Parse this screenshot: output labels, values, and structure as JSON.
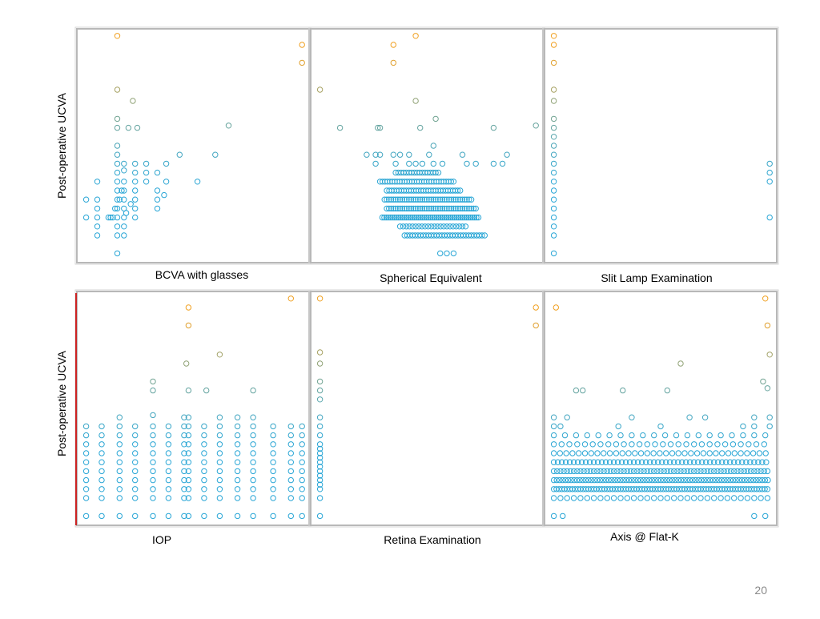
{
  "page_number": "20",
  "colors": {
    "low": "#29a6d6",
    "high": "#f0a020",
    "frame": "#b8b8b8",
    "accent_line": "#cc2222"
  },
  "chart_data": [
    {
      "type": "scatter",
      "xlabel": "BCVA with glasses",
      "ylabel": "Post-operative UCVA",
      "xlim": [
        0,
        1
      ],
      "ylim": [
        0,
        1
      ],
      "points": [
        [
          0.16,
          0.99
        ],
        [
          0.99,
          0.95
        ],
        [
          0.99,
          0.87
        ],
        [
          0.16,
          0.75
        ],
        [
          0.23,
          0.7
        ],
        [
          0.16,
          0.62
        ],
        [
          0.16,
          0.58
        ],
        [
          0.21,
          0.58
        ],
        [
          0.25,
          0.58
        ],
        [
          0.66,
          0.59
        ],
        [
          0.44,
          0.46
        ],
        [
          0.6,
          0.46
        ],
        [
          0.16,
          0.5
        ],
        [
          0.16,
          0.46
        ],
        [
          0.16,
          0.42
        ],
        [
          0.19,
          0.42
        ],
        [
          0.24,
          0.42
        ],
        [
          0.29,
          0.42
        ],
        [
          0.38,
          0.42
        ],
        [
          0.16,
          0.38
        ],
        [
          0.19,
          0.39
        ],
        [
          0.24,
          0.38
        ],
        [
          0.29,
          0.38
        ],
        [
          0.34,
          0.38
        ],
        [
          0.16,
          0.34
        ],
        [
          0.19,
          0.34
        ],
        [
          0.24,
          0.34
        ],
        [
          0.29,
          0.34
        ],
        [
          0.38,
          0.34
        ],
        [
          0.52,
          0.34
        ],
        [
          0.07,
          0.34
        ],
        [
          0.16,
          0.3
        ],
        [
          0.19,
          0.3
        ],
        [
          0.24,
          0.3
        ],
        [
          0.34,
          0.3
        ],
        [
          0.37,
          0.28
        ],
        [
          0.02,
          0.26
        ],
        [
          0.07,
          0.26
        ],
        [
          0.16,
          0.26
        ],
        [
          0.19,
          0.26
        ],
        [
          0.24,
          0.26
        ],
        [
          0.34,
          0.26
        ],
        [
          0.07,
          0.22
        ],
        [
          0.16,
          0.22
        ],
        [
          0.19,
          0.22
        ],
        [
          0.24,
          0.22
        ],
        [
          0.34,
          0.22
        ],
        [
          0.07,
          0.18
        ],
        [
          0.13,
          0.18
        ],
        [
          0.16,
          0.18
        ],
        [
          0.19,
          0.18
        ],
        [
          0.24,
          0.18
        ],
        [
          0.02,
          0.18
        ],
        [
          0.07,
          0.14
        ],
        [
          0.16,
          0.14
        ],
        [
          0.19,
          0.14
        ],
        [
          0.07,
          0.1
        ],
        [
          0.16,
          0.1
        ],
        [
          0.19,
          0.1
        ],
        [
          0.16,
          0.02
        ],
        [
          0.15,
          0.22
        ],
        [
          0.17,
          0.26
        ],
        [
          0.18,
          0.3
        ],
        [
          0.2,
          0.2
        ],
        [
          0.22,
          0.24
        ],
        [
          0.14,
          0.18
        ],
        [
          0.12,
          0.18
        ]
      ]
    },
    {
      "type": "scatter",
      "xlabel": "Spherical Equivalent",
      "ylabel": "",
      "xlim": [
        0,
        1
      ],
      "ylim": [
        0,
        1
      ],
      "points": [
        [
          0.45,
          0.99
        ],
        [
          0.35,
          0.95
        ],
        [
          0.35,
          0.87
        ],
        [
          0.02,
          0.75
        ],
        [
          0.45,
          0.7
        ],
        [
          0.54,
          0.62
        ],
        [
          0.11,
          0.58
        ],
        [
          0.28,
          0.58
        ],
        [
          0.29,
          0.58
        ],
        [
          0.47,
          0.58
        ],
        [
          0.8,
          0.58
        ],
        [
          0.99,
          0.59
        ],
        [
          0.53,
          0.5
        ],
        [
          0.23,
          0.46
        ],
        [
          0.27,
          0.46
        ],
        [
          0.29,
          0.46
        ],
        [
          0.35,
          0.46
        ],
        [
          0.38,
          0.46
        ],
        [
          0.42,
          0.46
        ],
        [
          0.51,
          0.46
        ],
        [
          0.66,
          0.46
        ],
        [
          0.86,
          0.46
        ],
        [
          0.27,
          0.42
        ],
        [
          0.36,
          0.42
        ],
        [
          0.42,
          0.42
        ],
        [
          0.45,
          0.42
        ],
        [
          0.48,
          0.42
        ],
        [
          0.53,
          0.42
        ],
        [
          0.57,
          0.42
        ],
        [
          0.68,
          0.42
        ],
        [
          0.72,
          0.42
        ],
        [
          0.8,
          0.42
        ],
        [
          0.84,
          0.42
        ]
      ],
      "clusters": [
        {
          "y": 0.38,
          "x0": 0.36,
          "x1": 0.56,
          "step": 0.012
        },
        {
          "y": 0.34,
          "x0": 0.29,
          "x1": 0.62,
          "step": 0.011
        },
        {
          "y": 0.3,
          "x0": 0.32,
          "x1": 0.66,
          "step": 0.011
        },
        {
          "y": 0.26,
          "x0": 0.31,
          "x1": 0.7,
          "step": 0.01
        },
        {
          "y": 0.22,
          "x0": 0.32,
          "x1": 0.72,
          "step": 0.01
        },
        {
          "y": 0.18,
          "x0": 0.3,
          "x1": 0.74,
          "step": 0.009
        },
        {
          "y": 0.14,
          "x0": 0.38,
          "x1": 0.68,
          "step": 0.014
        },
        {
          "y": 0.1,
          "x0": 0.4,
          "x1": 0.76,
          "step": 0.012
        },
        {
          "y": 0.02,
          "x0": 0.56,
          "x1": 0.62,
          "step": 0.03
        }
      ]
    },
    {
      "type": "scatter",
      "xlabel": "Slit Lamp Examination",
      "ylabel": "",
      "xlim": [
        0,
        1
      ],
      "ylim": [
        0,
        1
      ],
      "points": [
        [
          0.02,
          0.99
        ],
        [
          0.02,
          0.95
        ],
        [
          0.02,
          0.87
        ],
        [
          0.02,
          0.75
        ],
        [
          0.02,
          0.7
        ],
        [
          0.02,
          0.62
        ],
        [
          0.02,
          0.58
        ],
        [
          0.02,
          0.54
        ],
        [
          0.02,
          0.5
        ],
        [
          0.02,
          0.46
        ],
        [
          0.02,
          0.42
        ],
        [
          0.02,
          0.38
        ],
        [
          0.02,
          0.34
        ],
        [
          0.02,
          0.3
        ],
        [
          0.02,
          0.26
        ],
        [
          0.02,
          0.22
        ],
        [
          0.02,
          0.18
        ],
        [
          0.02,
          0.14
        ],
        [
          0.02,
          0.1
        ],
        [
          0.02,
          0.02
        ],
        [
          0.99,
          0.42
        ],
        [
          0.99,
          0.38
        ],
        [
          0.99,
          0.34
        ],
        [
          0.99,
          0.18
        ]
      ]
    },
    {
      "type": "scatter",
      "xlabel": "IOP",
      "ylabel": "Post-operative UCVA",
      "xlim": [
        0,
        1
      ],
      "ylim": [
        0,
        1
      ],
      "points": [
        [
          0.94,
          0.99
        ],
        [
          0.48,
          0.95
        ],
        [
          0.48,
          0.87
        ],
        [
          0.62,
          0.74
        ],
        [
          0.47,
          0.7
        ],
        [
          0.32,
          0.62
        ],
        [
          0.32,
          0.58
        ],
        [
          0.48,
          0.58
        ],
        [
          0.56,
          0.58
        ],
        [
          0.77,
          0.58
        ],
        [
          0.17,
          0.46
        ],
        [
          0.32,
          0.47
        ],
        [
          0.46,
          0.46
        ],
        [
          0.48,
          0.46
        ],
        [
          0.62,
          0.46
        ],
        [
          0.7,
          0.46
        ],
        [
          0.77,
          0.46
        ]
      ],
      "grid_points": {
        "cols": [
          0.02,
          0.09,
          0.17,
          0.24,
          0.32,
          0.39,
          0.46,
          0.48,
          0.55,
          0.62,
          0.7,
          0.77,
          0.86,
          0.94,
          0.99
        ],
        "rows": [
          0.42,
          0.38,
          0.34,
          0.3,
          0.26,
          0.22,
          0.18,
          0.14,
          0.1,
          0.02
        ]
      }
    },
    {
      "type": "scatter",
      "xlabel": "Retina Examination",
      "ylabel": "",
      "xlim": [
        0,
        1
      ],
      "ylim": [
        0,
        1
      ],
      "points": [
        [
          0.02,
          0.99
        ],
        [
          0.99,
          0.95
        ],
        [
          0.99,
          0.87
        ],
        [
          0.02,
          0.75
        ],
        [
          0.02,
          0.7
        ],
        [
          0.02,
          0.62
        ],
        [
          0.02,
          0.58
        ],
        [
          0.02,
          0.54
        ],
        [
          0.02,
          0.46
        ],
        [
          0.02,
          0.42
        ],
        [
          0.02,
          0.38
        ],
        [
          0.02,
          0.34
        ],
        [
          0.02,
          0.32
        ],
        [
          0.02,
          0.3
        ],
        [
          0.02,
          0.28
        ],
        [
          0.02,
          0.26
        ],
        [
          0.02,
          0.24
        ],
        [
          0.02,
          0.22
        ],
        [
          0.02,
          0.2
        ],
        [
          0.02,
          0.18
        ],
        [
          0.02,
          0.16
        ],
        [
          0.02,
          0.14
        ],
        [
          0.02,
          0.1
        ],
        [
          0.02,
          0.02
        ]
      ]
    },
    {
      "type": "scatter",
      "xlabel": "Axis @ Flat-K",
      "ylabel": "",
      "xlim": [
        0,
        1
      ],
      "ylim": [
        0,
        1
      ],
      "points": [
        [
          0.97,
          0.99
        ],
        [
          0.03,
          0.95
        ],
        [
          0.98,
          0.87
        ],
        [
          0.99,
          0.74
        ],
        [
          0.59,
          0.7
        ],
        [
          0.96,
          0.62
        ],
        [
          0.12,
          0.58
        ],
        [
          0.15,
          0.58
        ],
        [
          0.33,
          0.58
        ],
        [
          0.53,
          0.58
        ],
        [
          0.98,
          0.59
        ],
        [
          0.02,
          0.46
        ],
        [
          0.08,
          0.46
        ],
        [
          0.37,
          0.46
        ],
        [
          0.63,
          0.46
        ],
        [
          0.7,
          0.46
        ],
        [
          0.92,
          0.46
        ],
        [
          0.99,
          0.46
        ],
        [
          0.02,
          0.42
        ],
        [
          0.05,
          0.42
        ],
        [
          0.31,
          0.42
        ],
        [
          0.5,
          0.42
        ],
        [
          0.87,
          0.42
        ],
        [
          0.92,
          0.42
        ],
        [
          0.99,
          0.42
        ],
        [
          0.02,
          0.02
        ],
        [
          0.06,
          0.02
        ],
        [
          0.92,
          0.02
        ],
        [
          0.97,
          0.02
        ]
      ],
      "clusters": [
        {
          "y": 0.38,
          "x0": 0.02,
          "x1": 0.99,
          "step": 0.05
        },
        {
          "y": 0.34,
          "x0": 0.02,
          "x1": 0.99,
          "step": 0.035
        },
        {
          "y": 0.3,
          "x0": 0.02,
          "x1": 0.99,
          "step": 0.028
        },
        {
          "y": 0.26,
          "x0": 0.02,
          "x1": 0.99,
          "step": 0.018
        },
        {
          "y": 0.22,
          "x0": 0.02,
          "x1": 0.99,
          "step": 0.015
        },
        {
          "y": 0.18,
          "x0": 0.02,
          "x1": 0.99,
          "step": 0.013
        },
        {
          "y": 0.14,
          "x0": 0.02,
          "x1": 0.99,
          "step": 0.012
        },
        {
          "y": 0.1,
          "x0": 0.02,
          "x1": 0.99,
          "step": 0.03
        }
      ]
    }
  ]
}
